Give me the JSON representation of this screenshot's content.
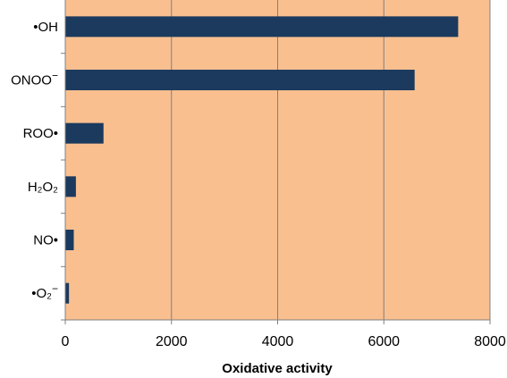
{
  "chart_data": {
    "type": "bar",
    "orientation": "horizontal",
    "title": "",
    "xlabel": "Oxidative activity",
    "ylabel": "",
    "xlim": [
      0,
      8000
    ],
    "xticks": [
      0,
      2000,
      4000,
      6000,
      8000
    ],
    "grid": true,
    "legend": "none",
    "categories": [
      {
        "prefix": "•",
        "base": "OH",
        "sub": "",
        "sup": ""
      },
      {
        "prefix": "",
        "base": "ONOO",
        "sub": "",
        "sup": "−"
      },
      {
        "prefix": "",
        "base": "ROO•",
        "sub": "",
        "sup": ""
      },
      {
        "prefix": "",
        "base": "H₂O₂",
        "sub": "",
        "sup": ""
      },
      {
        "prefix": "",
        "base": "NO•",
        "sub": "",
        "sup": ""
      },
      {
        "prefix": "•",
        "base": "O₂",
        "sub": "",
        "sup": "−"
      }
    ],
    "values": [
      7400,
      6580,
      720,
      200,
      160,
      70
    ],
    "colors": {
      "plot_background": "#f9bf8f",
      "bar": "#1b3a5e",
      "gridline": "#808080"
    }
  }
}
